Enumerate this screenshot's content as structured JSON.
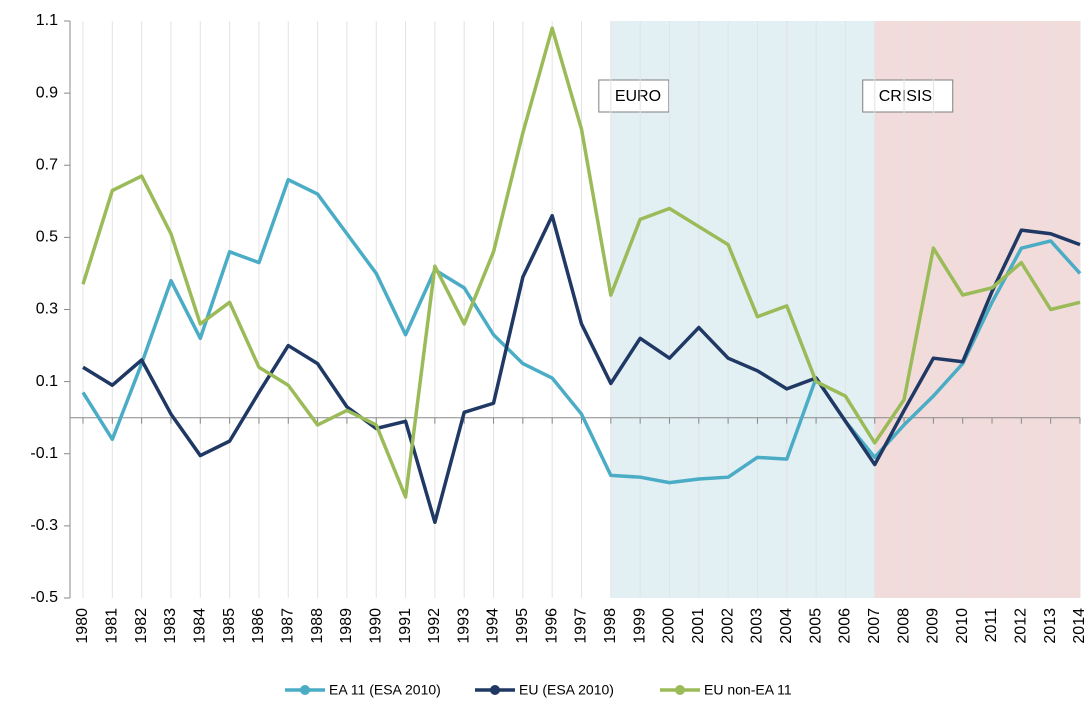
{
  "chart_data": {
    "type": "line",
    "categories": [
      "1980",
      "1981",
      "1982",
      "1983",
      "1984",
      "1985",
      "1986",
      "1987",
      "1988",
      "1989",
      "1990",
      "1991",
      "1992",
      "1993",
      "1994",
      "1995",
      "1996",
      "1997",
      "1998",
      "1999",
      "2000",
      "2001",
      "2002",
      "2003",
      "2004",
      "2005",
      "2006",
      "2007",
      "2008",
      "2009",
      "2010",
      "2011",
      "2012",
      "2013",
      "2014"
    ],
    "series": [
      {
        "name": "EA 11 (ESA 2010)",
        "color": "#4bacc6",
        "values": [
          0.07,
          -0.06,
          0.15,
          0.38,
          0.22,
          0.46,
          0.43,
          0.66,
          0.62,
          0.51,
          0.4,
          0.23,
          0.41,
          0.36,
          0.23,
          0.15,
          0.11,
          0.01,
          -0.16,
          -0.165,
          -0.18,
          -0.17,
          -0.165,
          -0.11,
          -0.115,
          0.11,
          -0.01,
          -0.11,
          -0.02,
          0.06,
          0.15,
          0.32,
          0.47,
          0.49,
          0.4
        ]
      },
      {
        "name": "EU (ESA 2010)",
        "color": "#1f3864",
        "values": [
          0.14,
          0.09,
          0.16,
          0.01,
          -0.105,
          -0.065,
          0.07,
          0.2,
          0.15,
          0.03,
          -0.03,
          -0.01,
          -0.29,
          0.015,
          0.04,
          0.39,
          0.56,
          0.26,
          0.095,
          0.22,
          0.165,
          0.25,
          0.165,
          0.13,
          0.08,
          0.11,
          -0.01,
          -0.13,
          0.02,
          0.165,
          0.155,
          0.35,
          0.52,
          0.51,
          0.48
        ]
      },
      {
        "name": "EU non-EA 11",
        "color": "#9bbb59",
        "values": [
          0.37,
          0.63,
          0.67,
          0.51,
          0.26,
          0.32,
          0.14,
          0.09,
          -0.02,
          0.02,
          -0.02,
          -0.22,
          0.42,
          0.26,
          0.46,
          0.79,
          1.08,
          0.8,
          0.34,
          0.55,
          0.58,
          0.53,
          0.48,
          0.28,
          0.31,
          0.1,
          0.06,
          -0.07,
          0.05,
          0.47,
          0.34,
          0.36,
          0.43,
          0.3,
          0.32
        ]
      }
    ],
    "ylim": [
      -0.5,
      1.1
    ],
    "yticks": [
      -0.5,
      -0.3,
      -0.1,
      0.1,
      0.3,
      0.5,
      0.7,
      0.9,
      1.1
    ],
    "grid": true,
    "legend": "bottom",
    "shaded_regions": [
      {
        "label": "EURO",
        "from": "1998",
        "to": "2007",
        "color": "#e2f0f4"
      },
      {
        "label": "CRISIS",
        "from": "2007",
        "to": "2014",
        "color": "#f2dcdb"
      }
    ]
  }
}
